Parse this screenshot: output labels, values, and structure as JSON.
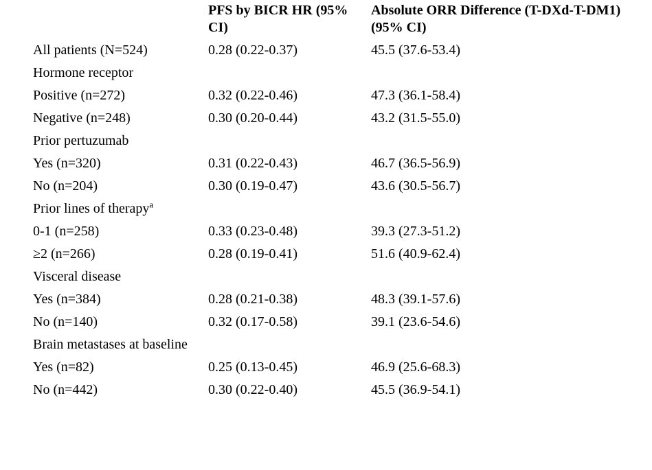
{
  "page": {
    "background_color": "#ffffff",
    "text_color": "#000000"
  },
  "table": {
    "header": {
      "col_label": "",
      "col_pfs": "PFS by BICR HR (95% CI)",
      "col_orr": "Absolute ORR Difference (T-DXd-T-DM1) (95% CI)"
    },
    "rows": [
      {
        "label": "All patients (N=524)",
        "bold": true,
        "pfs": "0.28 (0.22-0.37)",
        "orr": "45.5 (37.6-53.4)"
      },
      {
        "label": "Hormone receptor",
        "bold": true,
        "pfs": "",
        "orr": ""
      },
      {
        "label": "Positive (n=272)",
        "bold": false,
        "pfs": "0.32 (0.22-0.46)",
        "orr": "47.3 (36.1-58.4)"
      },
      {
        "label": "Negative (n=248)",
        "bold": false,
        "pfs": "0.30 (0.20-0.44)",
        "orr": "43.2 (31.5-55.0)"
      },
      {
        "label": "Prior pertuzumab",
        "bold": true,
        "pfs": "",
        "orr": ""
      },
      {
        "label": "Yes (n=320)",
        "bold": false,
        "pfs": "0.31 (0.22-0.43)",
        "orr": "46.7 (36.5-56.9)"
      },
      {
        "label": "No (n=204)",
        "bold": false,
        "pfs": "0.30 (0.19-0.47)",
        "orr": "43.6 (30.5-56.7)"
      },
      {
        "label": "Prior lines of therapy",
        "sup": "a",
        "bold": true,
        "pfs": "",
        "orr": ""
      },
      {
        "label": "0-1 (n=258)",
        "bold": false,
        "pfs": "0.33 (0.23-0.48)",
        "orr": "39.3 (27.3-51.2)"
      },
      {
        "label": "≥2 (n=266)",
        "bold": false,
        "pfs": "0.28 (0.19-0.41)",
        "orr": "51.6 (40.9-62.4)"
      },
      {
        "label": "Visceral disease",
        "bold": true,
        "pfs": "",
        "orr": ""
      },
      {
        "label": "Yes (n=384)",
        "bold": false,
        "pfs": "0.28 (0.21-0.38)",
        "orr": "48.3 (39.1-57.6)"
      },
      {
        "label": "No (n=140)",
        "bold": false,
        "pfs": "0.32 (0.17-0.58)",
        "orr": "39.1 (23.6-54.6)"
      },
      {
        "label": "Brain metastases at baseline",
        "bold": true,
        "pfs": "",
        "orr": ""
      },
      {
        "label": "Yes (n=82)",
        "bold": false,
        "pfs": "0.25 (0.13-0.45)",
        "orr": "46.9 (25.6-68.3)"
      },
      {
        "label": "No (n=442)",
        "bold": false,
        "pfs": "0.30 (0.22-0.40)",
        "orr": "45.5 (36.9-54.1)"
      }
    ]
  }
}
